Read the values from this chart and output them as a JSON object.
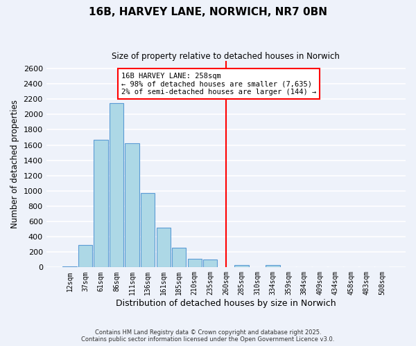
{
  "title": "16B, HARVEY LANE, NORWICH, NR7 0BN",
  "subtitle": "Size of property relative to detached houses in Norwich",
  "xlabel": "Distribution of detached houses by size in Norwich",
  "ylabel": "Number of detached properties",
  "bin_labels": [
    "12sqm",
    "37sqm",
    "61sqm",
    "86sqm",
    "111sqm",
    "136sqm",
    "161sqm",
    "185sqm",
    "210sqm",
    "235sqm",
    "260sqm",
    "285sqm",
    "310sqm",
    "334sqm",
    "359sqm",
    "384sqm",
    "409sqm",
    "434sqm",
    "458sqm",
    "483sqm",
    "508sqm"
  ],
  "bar_values": [
    10,
    295,
    1670,
    2150,
    1620,
    970,
    515,
    255,
    115,
    100,
    0,
    30,
    0,
    30,
    0,
    0,
    0,
    0,
    0,
    0,
    0
  ],
  "bar_color": "#add8e6",
  "bar_edge_color": "#5b9bd5",
  "vline_x": 10.0,
  "vline_color": "#ff0000",
  "annotation_text": "16B HARVEY LANE: 258sqm\n← 98% of detached houses are smaller (7,635)\n2% of semi-detached houses are larger (144) →",
  "annotation_box_color": "#ffffff",
  "annotation_box_edge": "#ff0000",
  "ylim": [
    0,
    2700
  ],
  "yticks": [
    0,
    200,
    400,
    600,
    800,
    1000,
    1200,
    1400,
    1600,
    1800,
    2000,
    2200,
    2400,
    2600
  ],
  "background_color": "#eef2fa",
  "grid_color": "#ffffff",
  "footer_line1": "Contains HM Land Registry data © Crown copyright and database right 2025.",
  "footer_line2": "Contains public sector information licensed under the Open Government Licence v3.0."
}
